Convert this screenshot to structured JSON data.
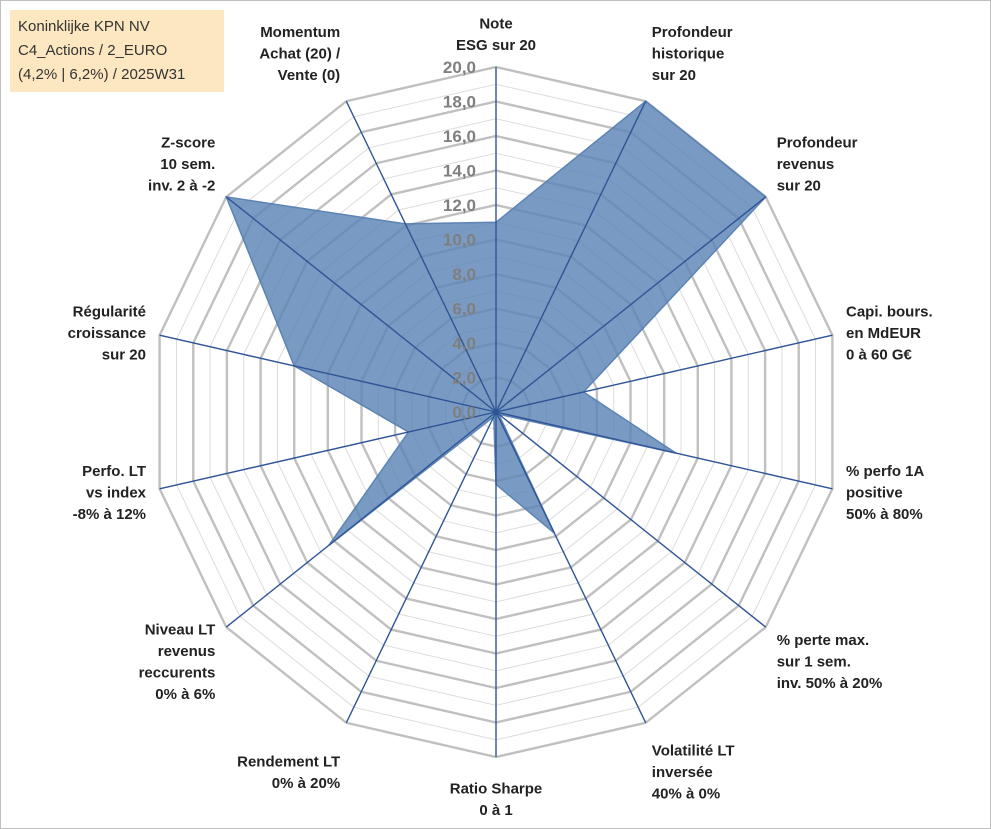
{
  "title": {
    "line1": "Koninklijke KPN NV",
    "line2": "C4_Actions / 2_EURO",
    "line3": "(4,2% | 6,2%) / 2025W31"
  },
  "colors": {
    "fill": "#5b84b5",
    "axis": "#2f5597",
    "grid_major": "#c0c0c0",
    "grid_minor": "#dcdcdc",
    "title_bg": "#fde7c1"
  },
  "chart_data": {
    "type": "radar",
    "range": [
      0,
      20
    ],
    "major_step": 2,
    "minor_step": 1,
    "tick_labels": [
      "0,0",
      "2,0",
      "4,0",
      "6,0",
      "8,0",
      "10,0",
      "12,0",
      "14,0",
      "16,0",
      "18,0",
      "20,0"
    ],
    "categories": [
      [
        "Note",
        "ESG sur 20"
      ],
      [
        "Profondeur",
        "historique",
        "sur 20"
      ],
      [
        "Profondeur",
        "revenus",
        "sur 20"
      ],
      [
        "Capi. bours.",
        "en MdEUR",
        "0 à 60 G€"
      ],
      [
        "% perfo 1A",
        "positive",
        "50% à 80%"
      ],
      [
        "% perte max.",
        "sur 1 sem.",
        "inv. 50% à 20%"
      ],
      [
        "Volatilité LT",
        "inversée",
        "40% à 0%"
      ],
      [
        "Ratio Sharpe",
        "0 à 1"
      ],
      [
        "Rendement LT",
        "0% à 20%"
      ],
      [
        "Niveau LT",
        "revenus",
        "reccurents",
        "0% à 6%"
      ],
      [
        "Perfo. LT",
        "vs index",
        "-8% à 12%"
      ],
      [
        "Régularité",
        "croissance",
        "sur 20"
      ],
      [
        "Z-score",
        "10 sem.",
        "inv. 2 à -2"
      ],
      [
        "Momentum",
        "Achat (20) /",
        "Vente (0)"
      ]
    ],
    "series": [
      {
        "values": [
          11.0,
          20.0,
          20.0,
          5.2,
          10.7,
          0.2,
          7.8,
          4.2,
          0.3,
          12.4,
          5.2,
          12.0,
          20.0,
          12.1
        ]
      }
    ]
  }
}
